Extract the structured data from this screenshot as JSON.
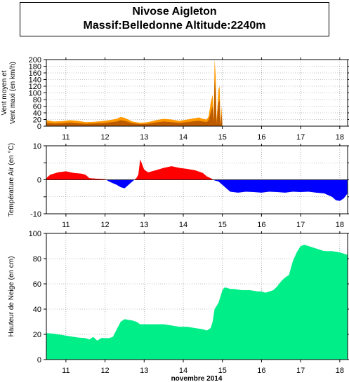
{
  "header": {
    "title_line1": "Nivose Aigleton",
    "title_line2": "Massif:Belledonne Altitude:2240m"
  },
  "xaxis": {
    "day_labels": [
      "11",
      "12",
      "13",
      "14",
      "15",
      "16",
      "17",
      "18"
    ],
    "day_values": [
      11,
      12,
      13,
      14,
      15,
      16,
      17,
      18
    ],
    "range": [
      10.5,
      18.2
    ],
    "label": "novembre 2014"
  },
  "colors": {
    "wind_max": "#ff9900",
    "wind_mean": "#b05000",
    "temp_positive": "#ff0000",
    "temp_negative": "#0000ff",
    "snow": "#00ee88",
    "grid": "#888888"
  },
  "chart_data": [
    {
      "type": "area",
      "ylabel_line1": "Vent moyen et",
      "ylabel_line2": "Vent maxi (en km/h)",
      "ylim": [
        0,
        200
      ],
      "yticks": [
        0,
        20,
        40,
        60,
        80,
        100,
        120,
        140,
        160,
        180,
        200
      ],
      "grid": true,
      "series": [
        {
          "name": "Vent maxi",
          "x": [
            10.5,
            10.7,
            10.9,
            11.1,
            11.3,
            11.5,
            11.7,
            11.9,
            12.1,
            12.3,
            12.4,
            12.5,
            12.7,
            12.9,
            13.1,
            13.3,
            13.5,
            13.7,
            13.9,
            14.1,
            14.3,
            14.4,
            14.5,
            14.6,
            14.65,
            14.7,
            14.75,
            14.78,
            14.8,
            14.83,
            14.85,
            14.9,
            14.93,
            14.95,
            14.98,
            15.0,
            15.1
          ],
          "values": [
            18,
            14,
            15,
            18,
            16,
            12,
            13,
            15,
            18,
            22,
            28,
            25,
            14,
            10,
            12,
            18,
            22,
            20,
            16,
            20,
            24,
            26,
            22,
            20,
            30,
            70,
            95,
            20,
            200,
            150,
            15,
            110,
            120,
            5,
            60,
            0,
            0
          ]
        },
        {
          "name": "Vent moyen",
          "x": [
            10.5,
            10.7,
            10.9,
            11.1,
            11.3,
            11.5,
            11.7,
            11.9,
            12.1,
            12.3,
            12.4,
            12.5,
            12.7,
            12.9,
            13.1,
            13.3,
            13.5,
            13.7,
            13.9,
            14.1,
            14.3,
            14.4,
            14.5,
            14.6,
            14.65,
            14.7,
            14.75,
            14.78,
            14.8,
            14.83,
            14.85,
            14.9,
            14.93,
            14.95,
            14.98,
            15.0,
            15.1
          ],
          "values": [
            10,
            8,
            9,
            11,
            9,
            7,
            8,
            9,
            11,
            14,
            18,
            16,
            9,
            6,
            7,
            11,
            14,
            12,
            10,
            12,
            15,
            16,
            14,
            12,
            18,
            40,
            60,
            12,
            140,
            100,
            8,
            70,
            80,
            3,
            35,
            0,
            0
          ]
        }
      ]
    },
    {
      "type": "area",
      "ylabel": "Température Air (en °C)",
      "ylim": [
        -10,
        10
      ],
      "yticks": [
        -10,
        -5,
        0,
        5,
        10
      ],
      "ytick_labels": [
        "-10",
        "0",
        "10"
      ],
      "grid": true,
      "series": [
        {
          "name": "Température",
          "x": [
            10.5,
            10.6,
            10.8,
            11.0,
            11.2,
            11.4,
            11.5,
            11.6,
            11.8,
            12.0,
            12.1,
            12.2,
            12.3,
            12.4,
            12.5,
            12.6,
            12.7,
            12.8,
            12.85,
            12.9,
            12.95,
            13.0,
            13.1,
            13.3,
            13.5,
            13.7,
            13.9,
            14.1,
            14.3,
            14.5,
            14.6,
            14.7,
            14.8,
            14.9,
            15.0,
            15.2,
            15.4,
            15.6,
            15.8,
            16.0,
            16.2,
            16.4,
            16.6,
            16.8,
            17.0,
            17.2,
            17.4,
            17.6,
            17.8,
            17.9,
            18.0,
            18.1,
            18.2
          ],
          "values": [
            0.5,
            1.5,
            2.2,
            2.5,
            2.0,
            1.8,
            1.5,
            0.5,
            0.3,
            0.2,
            -0.5,
            -1.0,
            -1.5,
            -2.2,
            -2.5,
            -1.5,
            -0.5,
            0.5,
            1.5,
            6.0,
            4.5,
            3.0,
            2.2,
            2.8,
            3.5,
            4.0,
            3.5,
            3.2,
            2.8,
            2.0,
            1.0,
            0.5,
            -0.2,
            -0.5,
            -1.5,
            -3.5,
            -3.8,
            -3.5,
            -3.6,
            -3.8,
            -3.5,
            -3.6,
            -3.8,
            -3.5,
            -3.6,
            -3.5,
            -3.8,
            -4.0,
            -5.0,
            -6.0,
            -6.2,
            -5.5,
            -4.0
          ]
        }
      ]
    },
    {
      "type": "area",
      "ylabel": "Hauteur de Neige (en cm)",
      "ylim": [
        0,
        100
      ],
      "yticks": [
        0,
        20,
        40,
        60,
        80,
        100
      ],
      "grid": true,
      "series": [
        {
          "name": "Hauteur de neige",
          "x": [
            10.5,
            10.7,
            10.9,
            11.1,
            11.3,
            11.5,
            11.6,
            11.7,
            11.8,
            11.9,
            12.0,
            12.1,
            12.2,
            12.3,
            12.4,
            12.5,
            12.7,
            12.8,
            12.9,
            13.1,
            13.3,
            13.5,
            13.7,
            13.9,
            14.1,
            14.3,
            14.5,
            14.6,
            14.7,
            14.75,
            14.8,
            14.9,
            15.0,
            15.05,
            15.1,
            15.2,
            15.3,
            15.5,
            15.7,
            15.9,
            16.0,
            16.1,
            16.3,
            16.4,
            16.5,
            16.6,
            16.7,
            16.8,
            16.9,
            17.0,
            17.1,
            17.2,
            17.4,
            17.6,
            17.8,
            18.0,
            18.2
          ],
          "values": [
            21,
            20.5,
            19.5,
            18.5,
            17.5,
            17,
            16,
            18,
            15,
            17,
            17,
            17,
            18,
            24,
            30,
            32,
            31,
            30,
            28,
            28,
            28,
            28,
            27,
            26,
            26,
            25,
            24,
            23,
            25,
            30,
            40,
            45,
            55,
            57,
            57,
            56,
            56,
            55,
            55,
            54,
            54,
            53,
            55,
            58,
            62,
            65,
            67,
            78,
            85,
            90,
            91,
            90,
            88,
            86,
            86,
            85,
            83
          ]
        }
      ]
    }
  ]
}
